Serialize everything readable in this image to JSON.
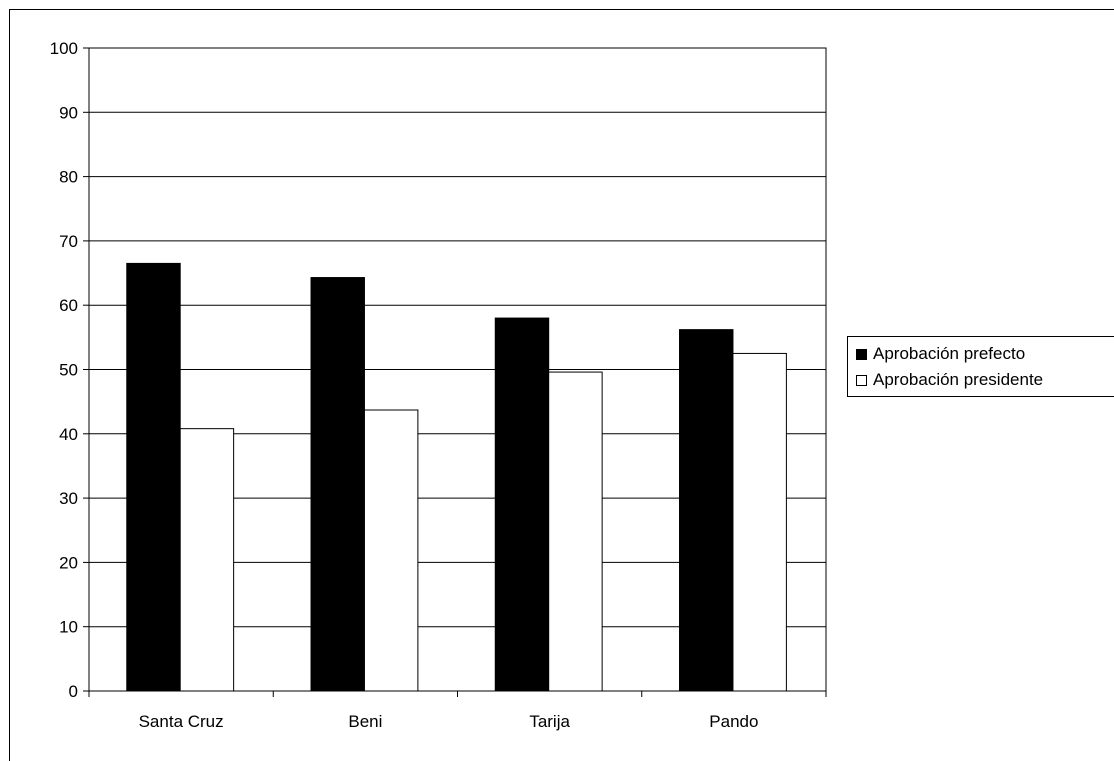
{
  "chart_data": {
    "type": "bar",
    "categories": [
      "Santa Cruz",
      "Beni",
      "Tarija",
      "Pando"
    ],
    "series": [
      {
        "name": "Aprobación prefecto",
        "values": [
          66.5,
          64.3,
          58.0,
          56.2
        ],
        "color": "#000000"
      },
      {
        "name": "Aprobación presidente",
        "values": [
          40.8,
          43.7,
          49.6,
          52.5
        ],
        "color": "#ffffff"
      }
    ],
    "title": "",
    "xlabel": "",
    "ylabel": "",
    "ylim": [
      0,
      100
    ],
    "yticks": [
      "0",
      "10",
      "20",
      "30",
      "40",
      "50",
      "60",
      "70",
      "80",
      "90",
      "100"
    ],
    "grid": true,
    "legend_position": "right"
  }
}
